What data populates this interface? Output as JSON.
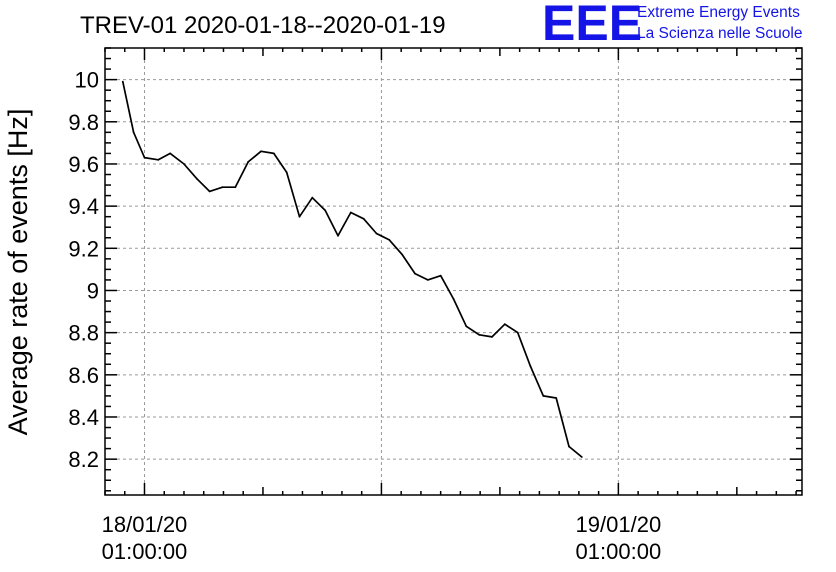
{
  "header": {
    "title": "TREV-01 2020-01-18--2020-01-19",
    "logo_text": "EEE",
    "brand_line1": "Extreme Energy Events",
    "brand_line2": "La Scienza nelle Scuole",
    "brand_color": "#1414e6"
  },
  "chart_data": {
    "type": "line",
    "title": "TREV-01 2020-01-18--2020-01-19",
    "xlabel": "",
    "ylabel": "Average rate of events [Hz]",
    "ylim": [
      8.03,
      10.15
    ],
    "xlim": [
      -2.0,
      33.3
    ],
    "x_major_ticks": [
      0,
      12,
      24
    ],
    "y_ticks": [
      8.2,
      8.4,
      8.6,
      8.8,
      9.0,
      9.2,
      9.4,
      9.6,
      9.8,
      10.0
    ],
    "y_tick_labels": [
      "8.2",
      "8.4",
      "8.6",
      "8.8",
      "9",
      "9.2",
      "9.4",
      "9.6",
      "9.8",
      "10"
    ],
    "x_tick_labels": [
      {
        "x": 0,
        "line1": "18/01/20",
        "line2": "01:00:00"
      },
      {
        "x": 24,
        "line1": "19/01/20",
        "line2": "01:00:00"
      }
    ],
    "grid": true,
    "line_color": "#000000",
    "series": [
      {
        "x": [
          -1.1,
          -0.55,
          0.0,
          0.7,
          1.3,
          2.0,
          2.65,
          3.3,
          3.95,
          4.6,
          5.25,
          5.9,
          6.55,
          7.2,
          7.85,
          8.5,
          9.15,
          9.8,
          10.45,
          11.1,
          11.75,
          12.4,
          13.05,
          13.7,
          14.35,
          15.0,
          15.65,
          16.3,
          16.95,
          17.6,
          18.25,
          18.9,
          19.55,
          20.2,
          20.85,
          21.5,
          22.15,
          22.8,
          23.45,
          24.1,
          24.75
        ],
        "values": [
          9.99,
          9.75,
          9.63,
          9.62,
          9.65,
          9.6,
          9.53,
          9.47,
          9.49,
          9.49,
          9.61,
          9.66,
          9.65,
          9.56,
          9.35,
          9.44,
          9.38,
          9.26,
          9.37,
          9.34,
          9.27,
          9.24,
          9.17,
          9.08,
          9.05,
          9.07,
          8.96,
          8.83,
          8.79,
          8.78,
          8.84,
          8.8,
          8.64,
          8.5,
          8.49,
          8.26,
          8.21,
          null,
          null,
          null,
          null
        ]
      }
    ]
  }
}
